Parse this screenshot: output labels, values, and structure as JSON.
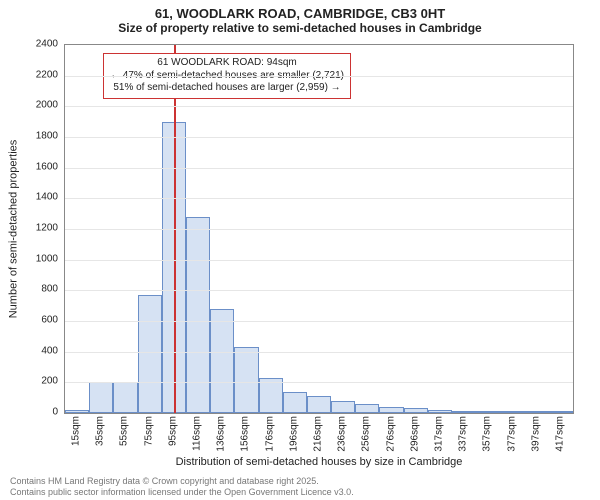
{
  "title_main": "61, WOODLARK ROAD, CAMBRIDGE, CB3 0HT",
  "title_sub": "Size of property relative to semi-detached houses in Cambridge",
  "chart": {
    "type": "histogram",
    "ylabel": "Number of semi-detached properties",
    "xlabel": "Distribution of semi-detached houses by size in Cambridge",
    "ylim": [
      0,
      2400
    ],
    "ytick_step": 200,
    "bar_fill": "#d6e2f3",
    "bar_border": "#6b8fc8",
    "grid_color": "#e6e6e6",
    "axis_color": "#888888",
    "background": "#ffffff",
    "categories": [
      "15sqm",
      "35sqm",
      "55sqm",
      "75sqm",
      "95sqm",
      "116sqm",
      "136sqm",
      "156sqm",
      "176sqm",
      "196sqm",
      "216sqm",
      "236sqm",
      "256sqm",
      "276sqm",
      "296sqm",
      "317sqm",
      "337sqm",
      "357sqm",
      "377sqm",
      "397sqm",
      "417sqm"
    ],
    "values": [
      20,
      200,
      200,
      770,
      1900,
      1280,
      680,
      430,
      230,
      140,
      110,
      80,
      60,
      40,
      30,
      20,
      10,
      5,
      0,
      0,
      0
    ],
    "label_fontsize": 11,
    "tick_fontsize": 10,
    "bar_width": 1.0
  },
  "marker": {
    "value_category_index": 4,
    "line_color": "#cc3333",
    "box_border": "#cc3333",
    "line1": "61 WOODLARK ROAD: 94sqm",
    "line2": "← 47% of semi-detached houses are smaller (2,721)",
    "line3": "51% of semi-detached houses are larger (2,959) →"
  },
  "footer": {
    "line1": "Contains HM Land Registry data © Crown copyright and database right 2025.",
    "line2": "Contains public sector information licensed under the Open Government Licence v3.0."
  }
}
